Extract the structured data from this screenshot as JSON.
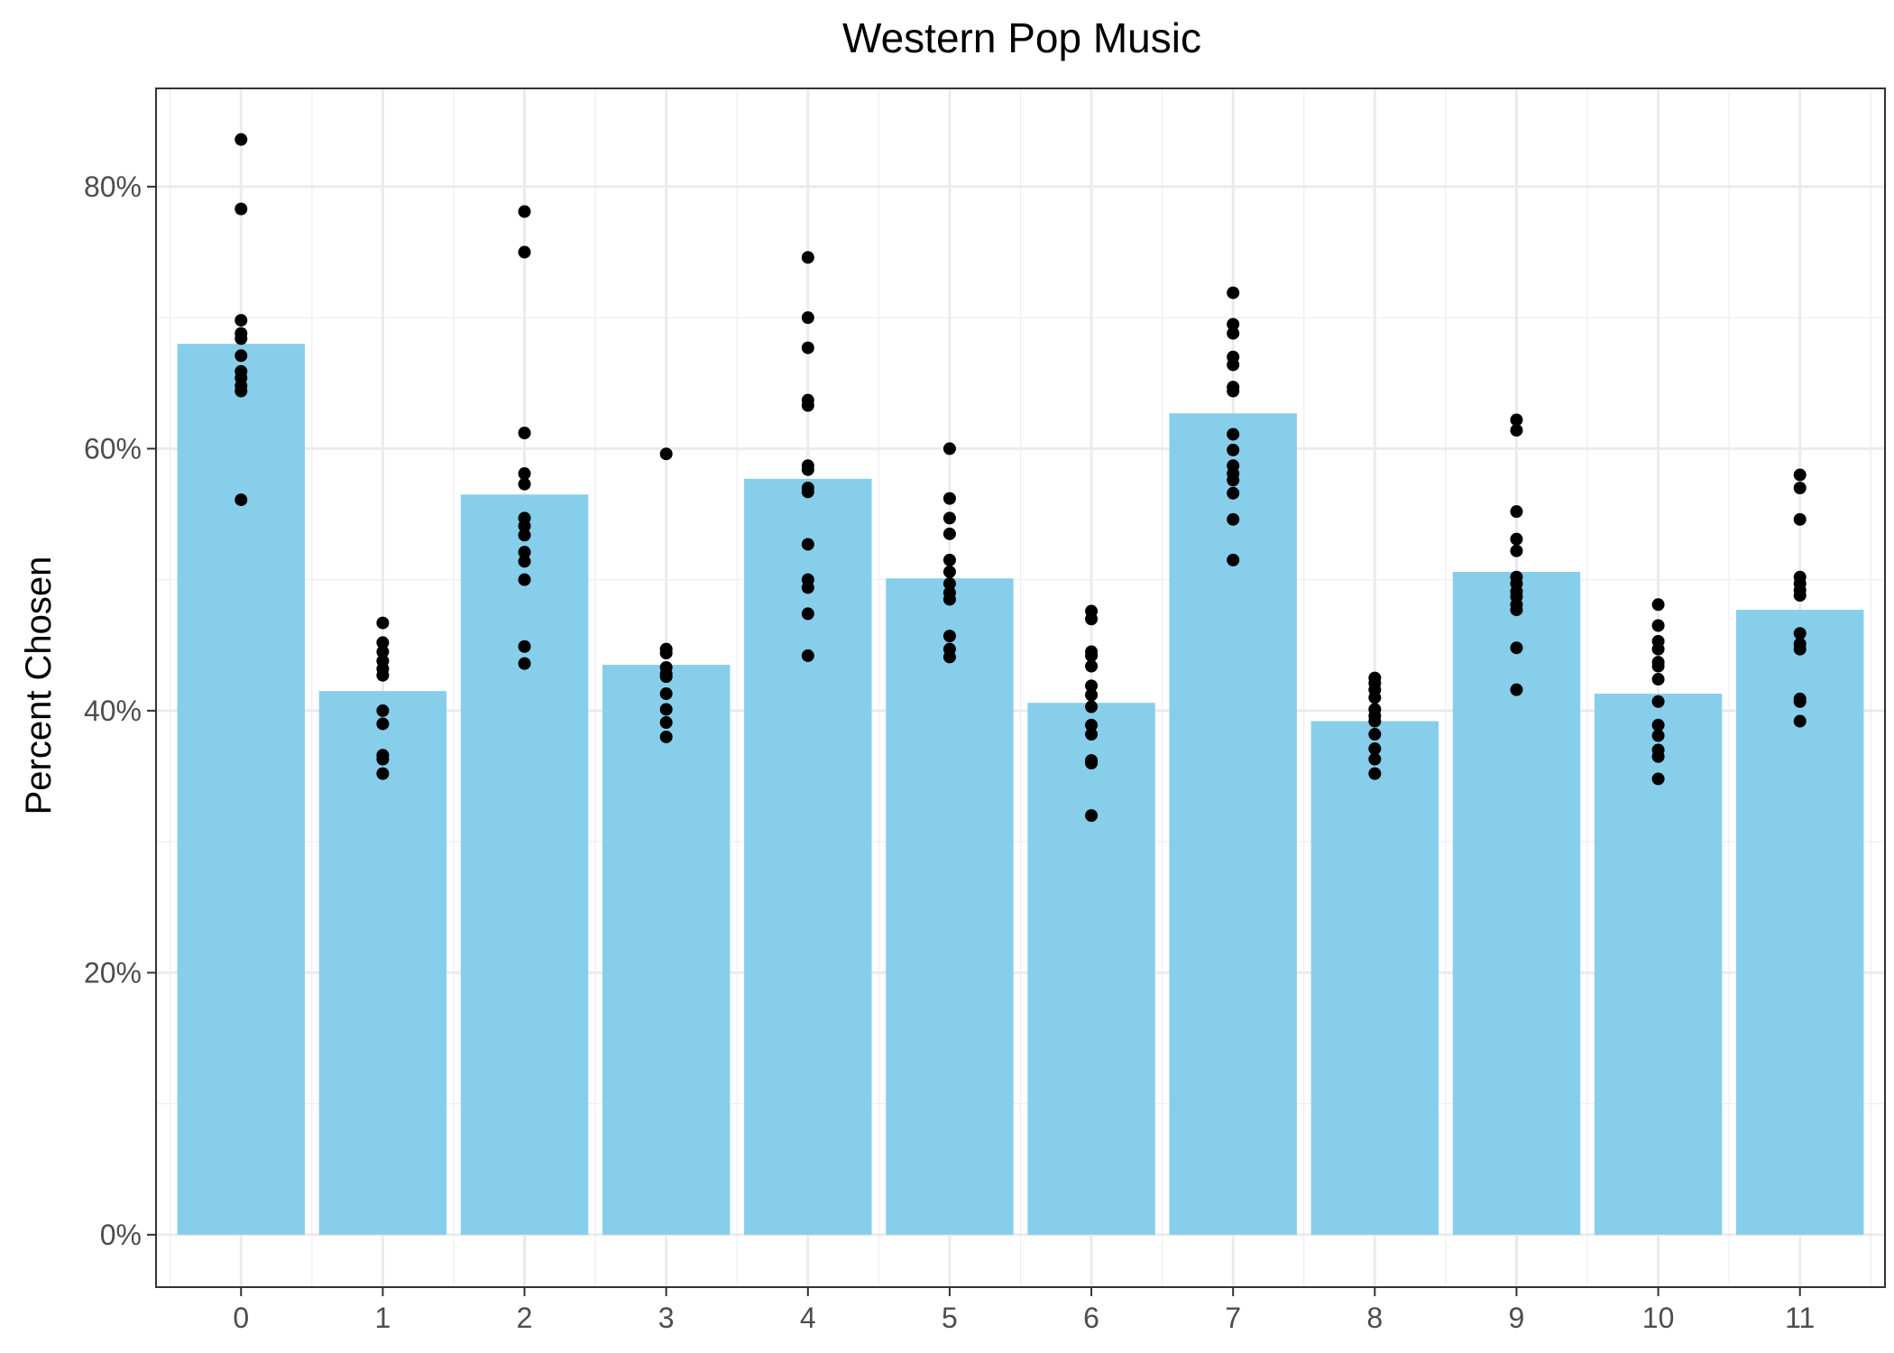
{
  "chart_data": {
    "type": "bar",
    "title": "Western Pop Music",
    "xlabel": "",
    "ylabel": "Percent Chosen",
    "ylim": [
      -0.04,
      0.875
    ],
    "yticks": [
      0,
      0.2,
      0.4,
      0.6,
      0.8
    ],
    "ytick_labels": [
      "0%",
      "20%",
      "40%",
      "60%",
      "80%"
    ],
    "grid": true,
    "categories": [
      "0",
      "1",
      "2",
      "3",
      "4",
      "5",
      "6",
      "7",
      "8",
      "9",
      "10",
      "11"
    ],
    "values": [
      0.68,
      0.415,
      0.565,
      0.435,
      0.577,
      0.501,
      0.406,
      0.627,
      0.392,
      0.506,
      0.413,
      0.477
    ],
    "bar_color": "#87CEEB",
    "point_color": "#000000",
    "points": [
      [
        0.836,
        0.783,
        0.698,
        0.688,
        0.684,
        0.671,
        0.659,
        0.654,
        0.648,
        0.644,
        0.561
      ],
      [
        0.467,
        0.452,
        0.445,
        0.438,
        0.432,
        0.427,
        0.4,
        0.39,
        0.366,
        0.363,
        0.352
      ],
      [
        0.781,
        0.75,
        0.612,
        0.581,
        0.573,
        0.547,
        0.541,
        0.534,
        0.521,
        0.514,
        0.5,
        0.449,
        0.436
      ],
      [
        0.596,
        0.447,
        0.444,
        0.433,
        0.428,
        0.426,
        0.413,
        0.401,
        0.391,
        0.38
      ],
      [
        0.746,
        0.7,
        0.677,
        0.637,
        0.633,
        0.587,
        0.584,
        0.57,
        0.567,
        0.527,
        0.5,
        0.494,
        0.474,
        0.442
      ],
      [
        0.6,
        0.562,
        0.547,
        0.535,
        0.515,
        0.506,
        0.497,
        0.49,
        0.485,
        0.457,
        0.447,
        0.441
      ],
      [
        0.476,
        0.47,
        0.445,
        0.442,
        0.434,
        0.419,
        0.412,
        0.403,
        0.389,
        0.382,
        0.362,
        0.36,
        0.32
      ],
      [
        0.719,
        0.695,
        0.688,
        0.67,
        0.664,
        0.647,
        0.644,
        0.611,
        0.599,
        0.587,
        0.581,
        0.576,
        0.566,
        0.546,
        0.515
      ],
      [
        0.425,
        0.421,
        0.416,
        0.41,
        0.401,
        0.396,
        0.392,
        0.382,
        0.371,
        0.363,
        0.352
      ],
      [
        0.622,
        0.614,
        0.552,
        0.531,
        0.522,
        0.502,
        0.497,
        0.491,
        0.487,
        0.481,
        0.477,
        0.448,
        0.416
      ],
      [
        0.481,
        0.465,
        0.453,
        0.447,
        0.437,
        0.434,
        0.424,
        0.407,
        0.389,
        0.381,
        0.37,
        0.365,
        0.348
      ],
      [
        0.58,
        0.57,
        0.546,
        0.502,
        0.497,
        0.492,
        0.488,
        0.459,
        0.451,
        0.447,
        0.409,
        0.407,
        0.392
      ]
    ]
  }
}
